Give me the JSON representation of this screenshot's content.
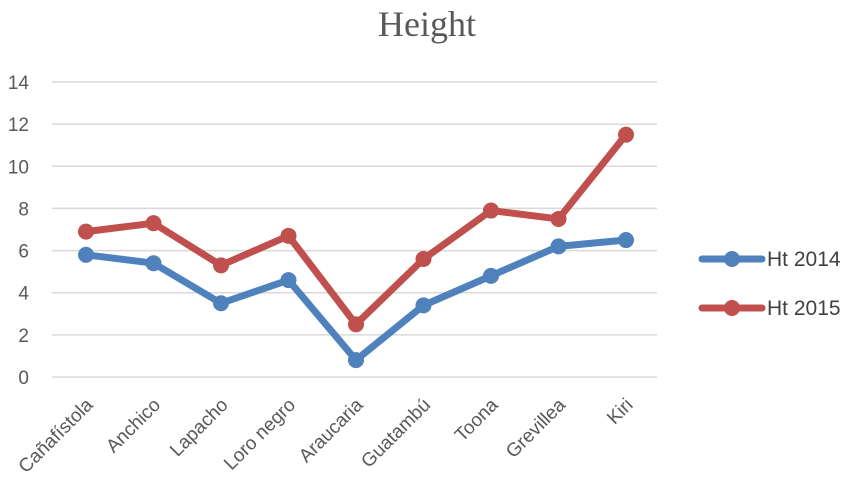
{
  "chart_data": {
    "type": "line",
    "title": "Height",
    "xlabel": "",
    "ylabel": "",
    "categories": [
      "Cañafístola",
      "Anchico",
      "Lapacho",
      "Loro negro",
      "Araucaria",
      "Guatambú",
      "Toona",
      "Grevillea",
      "Kiri"
    ],
    "ylim": [
      0,
      14
    ],
    "yticks": [
      "0",
      "2",
      "4",
      "6",
      "8",
      "10",
      "12",
      "14"
    ],
    "grid": true,
    "legend_position": "right",
    "series": [
      {
        "name": "Ht 2014",
        "color": "#4f81bd",
        "values": [
          5.8,
          5.4,
          3.5,
          4.6,
          0.8,
          3.4,
          4.8,
          6.2,
          6.5
        ]
      },
      {
        "name": "Ht 2015",
        "color": "#c0504d",
        "values": [
          6.9,
          7.3,
          5.3,
          6.7,
          2.5,
          5.6,
          7.9,
          7.5,
          11.5
        ]
      }
    ]
  }
}
